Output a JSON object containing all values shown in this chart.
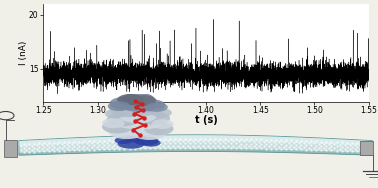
{
  "xlim": [
    1.25,
    1.55
  ],
  "ylim": [
    12,
    21
  ],
  "yticks": [
    15,
    20
  ],
  "xticks": [
    1.25,
    1.3,
    1.35,
    1.4,
    1.45,
    1.5,
    1.55
  ],
  "xlabel": "t (s)",
  "ylabel": "I (nA)",
  "signal_baseline": 14.5,
  "signal_noise_std": 0.55,
  "background_color": "#f0efe8",
  "plot_bg": "#ffffff",
  "seed": 42,
  "tube_color_light": "#c8dede",
  "tube_color_dark": "#5a9898",
  "tube_dot_color": "#ffffff",
  "electrode_gray": "#909090",
  "protein_gray_light": "#d0d8e0",
  "protein_gray_mid": "#b0bcc8",
  "protein_gray_dark": "#7888a0",
  "protein_blue": "#2a3fa0",
  "protein_red": "#cc2222"
}
